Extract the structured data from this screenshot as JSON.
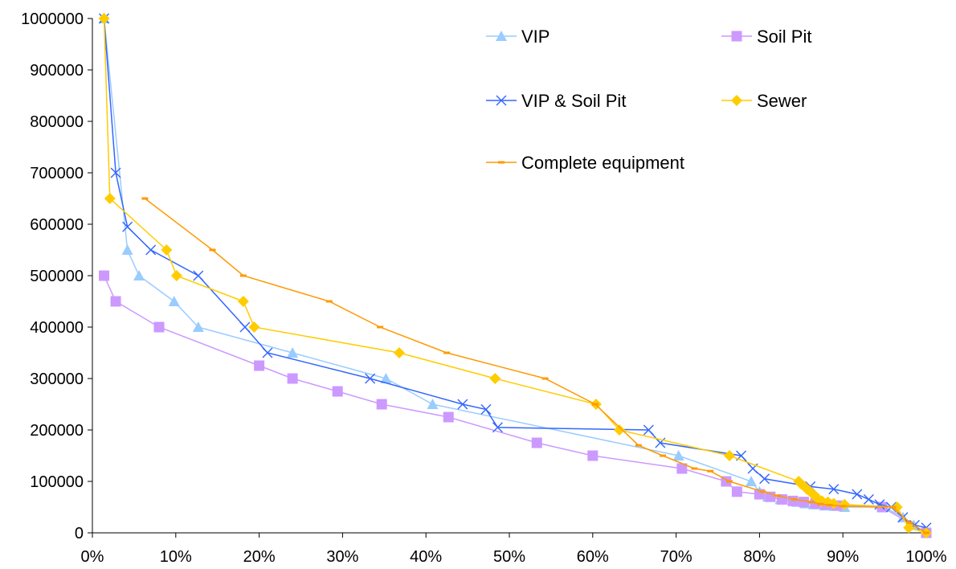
{
  "chart_data": {
    "type": "line",
    "title": "",
    "xlabel": "",
    "ylabel": "",
    "xlim": [
      0,
      1
    ],
    "ylim": [
      0,
      1000000
    ],
    "x_ticks": [
      0,
      0.1,
      0.2,
      0.3,
      0.4,
      0.5,
      0.6,
      0.7,
      0.8,
      0.9,
      1.0
    ],
    "x_tick_labels": [
      "0%",
      "10%",
      "20%",
      "30%",
      "40%",
      "50%",
      "60%",
      "70%",
      "80%",
      "90%",
      "100%"
    ],
    "y_ticks": [
      0,
      100000,
      200000,
      300000,
      400000,
      500000,
      600000,
      700000,
      800000,
      900000,
      1000000
    ],
    "y_tick_labels": [
      "0",
      "100000",
      "200000",
      "300000",
      "400000",
      "500000",
      "600000",
      "700000",
      "800000",
      "900000",
      "1000000"
    ],
    "grid": false,
    "legend_position": "top-right, inside plot",
    "series": [
      {
        "name": "VIP",
        "color": "#99CCFF",
        "marker": "triangle",
        "points": [
          [
            0.014,
            1000000
          ],
          [
            0.042,
            550000
          ],
          [
            0.056,
            500000
          ],
          [
            0.098,
            450000
          ],
          [
            0.127,
            400000
          ],
          [
            0.24,
            350000
          ],
          [
            0.352,
            300000
          ],
          [
            0.408,
            250000
          ],
          [
            0.703,
            150000
          ],
          [
            0.79,
            100000
          ],
          [
            0.8,
            80000
          ],
          [
            0.81,
            70000
          ],
          [
            0.825,
            65000
          ],
          [
            0.845,
            60000
          ],
          [
            0.855,
            57000
          ],
          [
            0.865,
            55000
          ],
          [
            0.878,
            53000
          ],
          [
            0.89,
            52000
          ],
          [
            0.902,
            50000
          ],
          [
            0.95,
            50000
          ],
          [
            0.972,
            30000
          ],
          [
            0.985,
            15000
          ],
          [
            1.0,
            0
          ]
        ]
      },
      {
        "name": "Soil Pit",
        "color": "#CC99FF",
        "marker": "square",
        "points": [
          [
            0.014,
            500000
          ],
          [
            0.028,
            450000
          ],
          [
            0.08,
            400000
          ],
          [
            0.2,
            325000
          ],
          [
            0.24,
            300000
          ],
          [
            0.294,
            275000
          ],
          [
            0.347,
            250000
          ],
          [
            0.427,
            225000
          ],
          [
            0.533,
            175000
          ],
          [
            0.6,
            150000
          ],
          [
            0.707,
            125000
          ],
          [
            0.76,
            100000
          ],
          [
            0.773,
            80000
          ],
          [
            0.8,
            75000
          ],
          [
            0.813,
            70000
          ],
          [
            0.827,
            65000
          ],
          [
            0.84,
            62000
          ],
          [
            0.853,
            60000
          ],
          [
            0.867,
            57000
          ],
          [
            0.88,
            55000
          ],
          [
            0.893,
            53000
          ],
          [
            0.947,
            50000
          ],
          [
            1.0,
            0
          ]
        ]
      },
      {
        "name": "VIP & Soil Pit",
        "color": "#3366FF",
        "marker": "x",
        "points": [
          [
            0.014,
            1000000
          ],
          [
            0.028,
            700000
          ],
          [
            0.042,
            595000
          ],
          [
            0.07,
            550000
          ],
          [
            0.127,
            500000
          ],
          [
            0.183,
            400000
          ],
          [
            0.21,
            350000
          ],
          [
            0.333,
            300000
          ],
          [
            0.444,
            250000
          ],
          [
            0.472,
            240000
          ],
          [
            0.486,
            205000
          ],
          [
            0.667,
            200000
          ],
          [
            0.681,
            175000
          ],
          [
            0.778,
            150000
          ],
          [
            0.792,
            125000
          ],
          [
            0.806,
            105000
          ],
          [
            0.861,
            90000
          ],
          [
            0.889,
            85000
          ],
          [
            0.917,
            75000
          ],
          [
            0.931,
            65000
          ],
          [
            0.944,
            55000
          ],
          [
            0.958,
            50000
          ],
          [
            0.972,
            30000
          ],
          [
            0.986,
            15000
          ],
          [
            1.0,
            10000
          ]
        ]
      },
      {
        "name": "Sewer",
        "color": "#FFCC00",
        "marker": "diamond",
        "points": [
          [
            0.014,
            1000000
          ],
          [
            0.021,
            650000
          ],
          [
            0.089,
            550000
          ],
          [
            0.101,
            500000
          ],
          [
            0.181,
            450000
          ],
          [
            0.194,
            400000
          ],
          [
            0.368,
            350000
          ],
          [
            0.483,
            300000
          ],
          [
            0.604,
            250000
          ],
          [
            0.632,
            200000
          ],
          [
            0.764,
            150000
          ],
          [
            0.847,
            100000
          ],
          [
            0.85,
            95000
          ],
          [
            0.854,
            90000
          ],
          [
            0.857,
            85000
          ],
          [
            0.861,
            80000
          ],
          [
            0.864,
            75000
          ],
          [
            0.868,
            70000
          ],
          [
            0.871,
            65000
          ],
          [
            0.875,
            62000
          ],
          [
            0.882,
            60000
          ],
          [
            0.889,
            57000
          ],
          [
            0.902,
            55000
          ],
          [
            0.965,
            50000
          ],
          [
            0.979,
            10000
          ],
          [
            1.0,
            0
          ]
        ]
      },
      {
        "name": "Complete equipment",
        "color": "#FF9900",
        "marker": "dash",
        "points": [
          [
            0.063,
            650000
          ],
          [
            0.144,
            550000
          ],
          [
            0.181,
            500000
          ],
          [
            0.284,
            450000
          ],
          [
            0.345,
            400000
          ],
          [
            0.425,
            350000
          ],
          [
            0.543,
            300000
          ],
          [
            0.603,
            250000
          ],
          [
            0.655,
            170000
          ],
          [
            0.684,
            150000
          ],
          [
            0.722,
            125000
          ],
          [
            0.741,
            120000
          ],
          [
            0.764,
            100000
          ],
          [
            0.804,
            80000
          ],
          [
            0.822,
            72000
          ],
          [
            0.842,
            65000
          ],
          [
            0.862,
            60000
          ],
          [
            0.873,
            56000
          ],
          [
            0.884,
            54000
          ],
          [
            0.9,
            52000
          ],
          [
            0.96,
            50000
          ],
          [
            0.98,
            20000
          ],
          [
            1.0,
            0
          ]
        ]
      }
    ]
  }
}
